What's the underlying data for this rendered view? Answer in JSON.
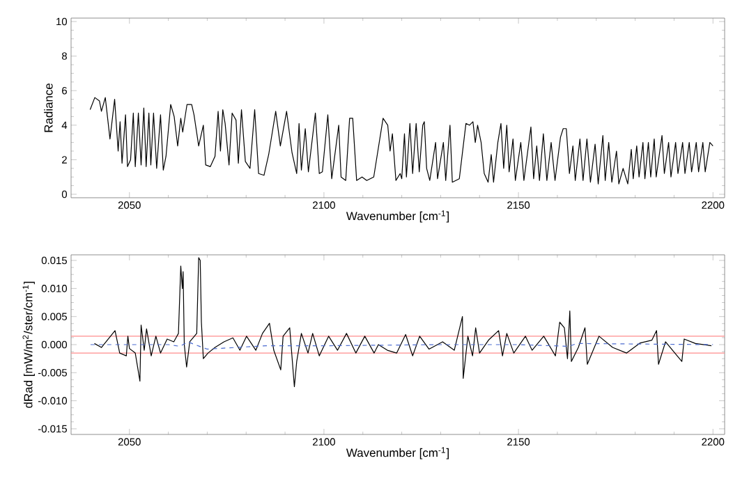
{
  "chart_data": [
    {
      "type": "line",
      "xlabel": "Wavenumber [cm$^{-1}$]",
      "ylabel": "Radiance",
      "xlim": [
        2035,
        2203
      ],
      "ylim": [
        -0.2,
        10.2
      ],
      "xticks": [
        2050,
        2100,
        2150,
        2200
      ],
      "yticks": [
        0,
        2,
        4,
        6,
        8,
        10
      ],
      "series": [
        {
          "color": "#000000",
          "x": [
            2039.9,
            2041.1,
            2042.3,
            2042.8,
            2043.8,
            2045.0,
            2046.2,
            2047.1,
            2047.6,
            2048.1,
            2049.0,
            2049.5,
            2050.3,
            2051.0,
            2051.5,
            2052.3,
            2053.0,
            2053.7,
            2054.3,
            2055.0,
            2055.5,
            2056.2,
            2057.0,
            2058.0,
            2058.7,
            2059.4,
            2060.6,
            2061.5,
            2062.4,
            2063.2,
            2063.7,
            2064.8,
            2066.0,
            2066.6,
            2067.4,
            2067.8,
            2069.0,
            2069.6,
            2070.8,
            2072.0,
            2072.8,
            2073.4,
            2074.0,
            2074.6,
            2075.6,
            2076.4,
            2077.4,
            2078.0,
            2078.8,
            2079.8,
            2081.0,
            2082.2,
            2083.2,
            2084.6,
            2085.8,
            2087.6,
            2088.8,
            2090.4,
            2091.8,
            2093.0,
            2093.6,
            2094.2,
            2095.2,
            2096.0,
            2097.8,
            2098.8,
            2099.6,
            2101.0,
            2102.0,
            2103.8,
            2104.4,
            2105.6,
            2106.6,
            2107.4,
            2108.4,
            2109.8,
            2111.0,
            2112.8,
            2115.2,
            2116.4,
            2117.0,
            2117.6,
            2118.5,
            2119.6,
            2120.0,
            2120.7,
            2121.2,
            2122.1,
            2122.8,
            2123.7,
            2124.5,
            2125.4,
            2125.8,
            2126.4,
            2127.2,
            2128.7,
            2129.2,
            2130.7,
            2131.3,
            2132.4,
            2133.0,
            2134.8,
            2136.5,
            2137.4,
            2138.3,
            2138.9,
            2139.5,
            2140.4,
            2141.2,
            2142.2,
            2143.0,
            2143.6,
            2144.7,
            2145.5,
            2146.2,
            2147.0,
            2147.6,
            2148.6,
            2149.2,
            2150.6,
            2151.4,
            2153.2,
            2153.9,
            2154.7,
            2155.4,
            2156.4,
            2157.3,
            2158.4,
            2159.4,
            2160.8,
            2161.5,
            2162.3,
            2163.1,
            2164.0,
            2164.6,
            2165.8,
            2166.6,
            2167.6,
            2168.5,
            2169.7,
            2170.5,
            2171.7,
            2172.3,
            2173.2,
            2174.0,
            2175.2,
            2175.8,
            2176.9,
            2178.1,
            2179.0,
            2179.5,
            2180.4,
            2181.0,
            2182.0,
            2182.5,
            2183.4,
            2184.0,
            2184.9,
            2185.4,
            2186.9,
            2187.5,
            2188.6,
            2189.2,
            2190.4,
            2191.0,
            2192.2,
            2192.8,
            2193.9,
            2194.5,
            2195.7,
            2196.3,
            2197.4,
            2198.0,
            2199.2,
            2200.0
          ],
          "values": [
            4.9,
            5.6,
            5.4,
            4.8,
            5.6,
            3.2,
            5.5,
            2.5,
            4.2,
            1.8,
            4.6,
            1.6,
            2.0,
            4.7,
            1.6,
            4.7,
            1.7,
            5.0,
            1.6,
            4.7,
            1.7,
            4.7,
            1.5,
            4.6,
            1.4,
            2.2,
            5.2,
            4.5,
            2.8,
            4.4,
            3.6,
            5.2,
            5.2,
            4.6,
            3.4,
            2.8,
            4.0,
            1.7,
            1.6,
            2.2,
            4.8,
            2.5,
            4.9,
            4.1,
            1.7,
            4.7,
            4.3,
            1.8,
            4.9,
            1.9,
            1.5,
            4.9,
            1.2,
            1.1,
            2.3,
            4.8,
            2.8,
            4.8,
            2.4,
            1.2,
            4.1,
            1.4,
            3.8,
            1.3,
            4.7,
            1.2,
            1.3,
            4.6,
            0.9,
            4.0,
            1.0,
            0.8,
            4.4,
            4.4,
            0.8,
            1.0,
            0.8,
            1.0,
            4.4,
            4.0,
            2.5,
            3.5,
            0.8,
            1.2,
            0.9,
            3.5,
            1.0,
            4.1,
            1.2,
            4.1,
            1.3,
            4.0,
            4.2,
            1.5,
            0.8,
            3.0,
            0.9,
            3.0,
            0.8,
            4.0,
            0.7,
            0.9,
            4.1,
            4.0,
            4.2,
            3.0,
            4.0,
            3.0,
            1.2,
            0.7,
            2.3,
            0.7,
            3.0,
            4.1,
            1.5,
            4.0,
            1.3,
            3.2,
            0.8,
            3.0,
            0.8,
            3.9,
            0.9,
            2.8,
            0.8,
            3.5,
            0.8,
            3.0,
            0.8,
            3.3,
            3.8,
            3.8,
            1.2,
            2.8,
            0.8,
            3.2,
            0.8,
            3.2,
            0.7,
            2.9,
            0.6,
            3.4,
            0.8,
            3.0,
            0.7,
            2.5,
            0.6,
            1.5,
            0.6,
            2.6,
            0.9,
            2.8,
            1.0,
            3.0,
            0.9,
            3.0,
            1.0,
            3.2,
            1.0,
            3.4,
            1.2,
            3.0,
            1.0,
            3.0,
            1.2,
            3.0,
            1.2,
            3.0,
            1.3,
            3.0,
            1.3,
            3.0,
            1.3,
            3.0,
            2.8
          ]
        }
      ]
    },
    {
      "type": "line",
      "xlabel": "Wavenumber [cm$^{-1}$]",
      "ylabel": "dRad [mW/m$^{2}$/ster/cm$^{-1}$]",
      "xlim": [
        2035,
        2203
      ],
      "ylim": [
        -0.016,
        0.016
      ],
      "xticks": [
        2050,
        2100,
        2150,
        2200
      ],
      "yticks": [
        {
          "value": -0.015,
          "label": "-0.015"
        },
        {
          "value": -0.01,
          "label": "-0.010"
        },
        {
          "value": -0.005,
          "label": "-0.005"
        },
        {
          "value": 0,
          "label": "0.000"
        },
        {
          "value": 0.005,
          "label": "0.005"
        },
        {
          "value": 0.01,
          "label": "0.010"
        },
        {
          "value": 0.015,
          "label": "0.015"
        }
      ],
      "ref_lines": [
        {
          "axis": "y",
          "value": 0.0015,
          "color": "#ff8c8c"
        },
        {
          "axis": "y",
          "value": -0.0015,
          "color": "#ff8c8c"
        }
      ],
      "series": [
        {
          "color": "#000000",
          "x": [
            2041.0,
            2042.8,
            2046.3,
            2047.5,
            2049.2,
            2049.6,
            2050.0,
            2051.5,
            2052.7,
            2053.0,
            2053.8,
            2054.4,
            2055.6,
            2056.8,
            2058.0,
            2059.7,
            2061.4,
            2062.6,
            2063.2,
            2063.6,
            2063.8,
            2064.1,
            2064.7,
            2065.5,
            2067.3,
            2067.8,
            2068.2,
            2068.5,
            2069.0,
            2070.2,
            2072.0,
            2074.3,
            2076.6,
            2078.4,
            2080.1,
            2082.5,
            2084.2,
            2086.0,
            2087.1,
            2088.9,
            2089.5,
            2091.2,
            2092.4,
            2093.0,
            2094.2,
            2095.9,
            2097.1,
            2098.8,
            2101.2,
            2103.5,
            2105.8,
            2108.2,
            2110.5,
            2112.9,
            2114.0,
            2116.3,
            2118.7,
            2121.0,
            2122.8,
            2124.6,
            2127.0,
            2130.5,
            2133.5,
            2135.6,
            2135.8,
            2137.0,
            2138.2,
            2139.0,
            2140.0,
            2142.3,
            2144.9,
            2145.9,
            2147.0,
            2148.8,
            2151.8,
            2153.5,
            2156.5,
            2159.5,
            2160.6,
            2161.8,
            2162.6,
            2163.2,
            2163.6,
            2165.4,
            2167.1,
            2167.7,
            2170.7,
            2174.2,
            2177.8,
            2181.3,
            2184.3,
            2185.5,
            2186.0,
            2187.8,
            2192.0,
            2192.6,
            2195.5,
            2199.6
          ],
          "values": [
            0.0002,
            -0.0005,
            0.0025,
            -0.0015,
            -0.002,
            0.0015,
            -0.0007,
            -0.0015,
            -0.0065,
            0.0035,
            -0.001,
            0.0028,
            -0.002,
            0.0015,
            -0.0015,
            0.001,
            0.0005,
            0.002,
            0.014,
            0.01,
            0.013,
            0.0,
            -0.004,
            0.0005,
            0.002,
            0.0155,
            0.015,
            0.004,
            -0.0025,
            -0.0015,
            -0.0005,
            0.0005,
            0.0012,
            -0.001,
            0.0015,
            -0.001,
            0.002,
            0.0038,
            -0.001,
            -0.0045,
            0.0015,
            0.003,
            -0.0075,
            -0.003,
            0.002,
            -0.0015,
            0.002,
            -0.002,
            0.0015,
            -0.001,
            0.002,
            -0.0015,
            0.0015,
            -0.0015,
            0.0,
            -0.001,
            -0.0015,
            0.0018,
            -0.002,
            0.0015,
            -0.0008,
            0.0005,
            -0.001,
            0.005,
            -0.006,
            0.0015,
            -0.002,
            0.003,
            -0.0015,
            0.0008,
            0.0025,
            -0.002,
            0.002,
            -0.0015,
            0.0015,
            -0.001,
            0.0015,
            -0.002,
            0.004,
            0.003,
            -0.0025,
            0.006,
            -0.003,
            -0.0005,
            0.003,
            -0.0035,
            0.0015,
            -0.0005,
            -0.0015,
            0.0003,
            0.0008,
            0.0025,
            -0.0035,
            0.0005,
            -0.003,
            0.001,
            0.0002,
            -0.0002
          ]
        },
        {
          "color": "#4a6ad0",
          "line_style": "dashed",
          "x": [
            2040,
            2060,
            2063,
            2065,
            2068,
            2070,
            2085,
            2100,
            2130,
            2150,
            2163,
            2165,
            2200
          ],
          "values": [
            0.0,
            0.0,
            -0.0003,
            0.0005,
            -0.0003,
            -0.0008,
            -0.0002,
            -0.0002,
            0.0,
            0.0,
            -0.0003,
            0.0002,
            0.0
          ]
        }
      ]
    }
  ]
}
